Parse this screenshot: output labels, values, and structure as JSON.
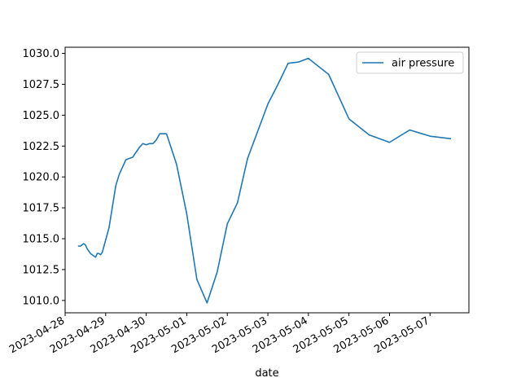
{
  "chart_data": {
    "type": "line",
    "title": "",
    "xlabel": "date",
    "ylabel": "",
    "x_ticks": [
      "2023-04-28",
      "2023-04-29",
      "2023-04-30",
      "2023-05-01",
      "2023-05-02",
      "2023-05-03",
      "2023-05-04",
      "2023-05-05",
      "2023-05-06",
      "2023-05-07"
    ],
    "y_ticks": [
      "1010.0",
      "1012.5",
      "1015.0",
      "1017.5",
      "1020.0",
      "1022.5",
      "1025.0",
      "1027.5",
      "1030.0"
    ],
    "xlim": [
      "2023-04-28T00:00",
      "2023-05-07T23:00"
    ],
    "ylim": [
      1009.0,
      1030.5
    ],
    "grid": false,
    "legend_position": "top-right",
    "series": [
      {
        "name": "air pressure",
        "color": "#1f77b4",
        "x": [
          "2023-04-28T08:00",
          "2023-04-28T09:00",
          "2023-04-28T11:00",
          "2023-04-28T12:00",
          "2023-04-28T13:00",
          "2023-04-28T15:00",
          "2023-04-28T17:00",
          "2023-04-28T18:00",
          "2023-04-28T19:00",
          "2023-04-28T20:00",
          "2023-04-28T21:00",
          "2023-04-28T22:00",
          "2023-04-29T00:00",
          "2023-04-29T02:00",
          "2023-04-29T04:00",
          "2023-04-29T06:00",
          "2023-04-29T08:00",
          "2023-04-29T10:00",
          "2023-04-29T12:00",
          "2023-04-29T14:00",
          "2023-04-29T16:00",
          "2023-04-29T18:00",
          "2023-04-29T20:00",
          "2023-04-29T22:00",
          "2023-04-30T00:00",
          "2023-04-30T02:00",
          "2023-04-30T04:00",
          "2023-04-30T06:00",
          "2023-04-30T08:00",
          "2023-04-30T10:00",
          "2023-04-30T12:00",
          "2023-04-30T18:00",
          "2023-05-01T00:00",
          "2023-05-01T06:00",
          "2023-05-01T12:00",
          "2023-05-01T18:00",
          "2023-05-02T00:00",
          "2023-05-02T06:00",
          "2023-05-02T12:00",
          "2023-05-02T18:00",
          "2023-05-03T00:00",
          "2023-05-03T06:00",
          "2023-05-03T12:00",
          "2023-05-03T18:00",
          "2023-05-04T00:00",
          "2023-05-04T12:00",
          "2023-05-05T00:00",
          "2023-05-05T12:00",
          "2023-05-06T00:00",
          "2023-05-06T12:00",
          "2023-05-07T00:00",
          "2023-05-07T12:00"
        ],
        "values": [
          1014.4,
          1014.4,
          1014.6,
          1014.5,
          1014.2,
          1013.8,
          1013.6,
          1013.5,
          1013.8,
          1013.8,
          1013.7,
          1013.9,
          1014.9,
          1015.9,
          1017.6,
          1019.3,
          1020.2,
          1020.8,
          1021.4,
          1021.5,
          1021.6,
          1022.0,
          1022.4,
          1022.7,
          1022.6,
          1022.7,
          1022.7,
          1023.0,
          1023.5,
          1023.5,
          1023.5,
          1021.0,
          1017.0,
          1011.7,
          1009.8,
          1012.3,
          1016.2,
          1017.9,
          1021.5,
          1023.7,
          1025.9,
          1027.5,
          1029.2,
          1029.3,
          1029.6,
          1028.3,
          1024.7,
          1023.4,
          1022.8,
          1023.8,
          1023.3,
          1023.1
        ]
      }
    ]
  }
}
